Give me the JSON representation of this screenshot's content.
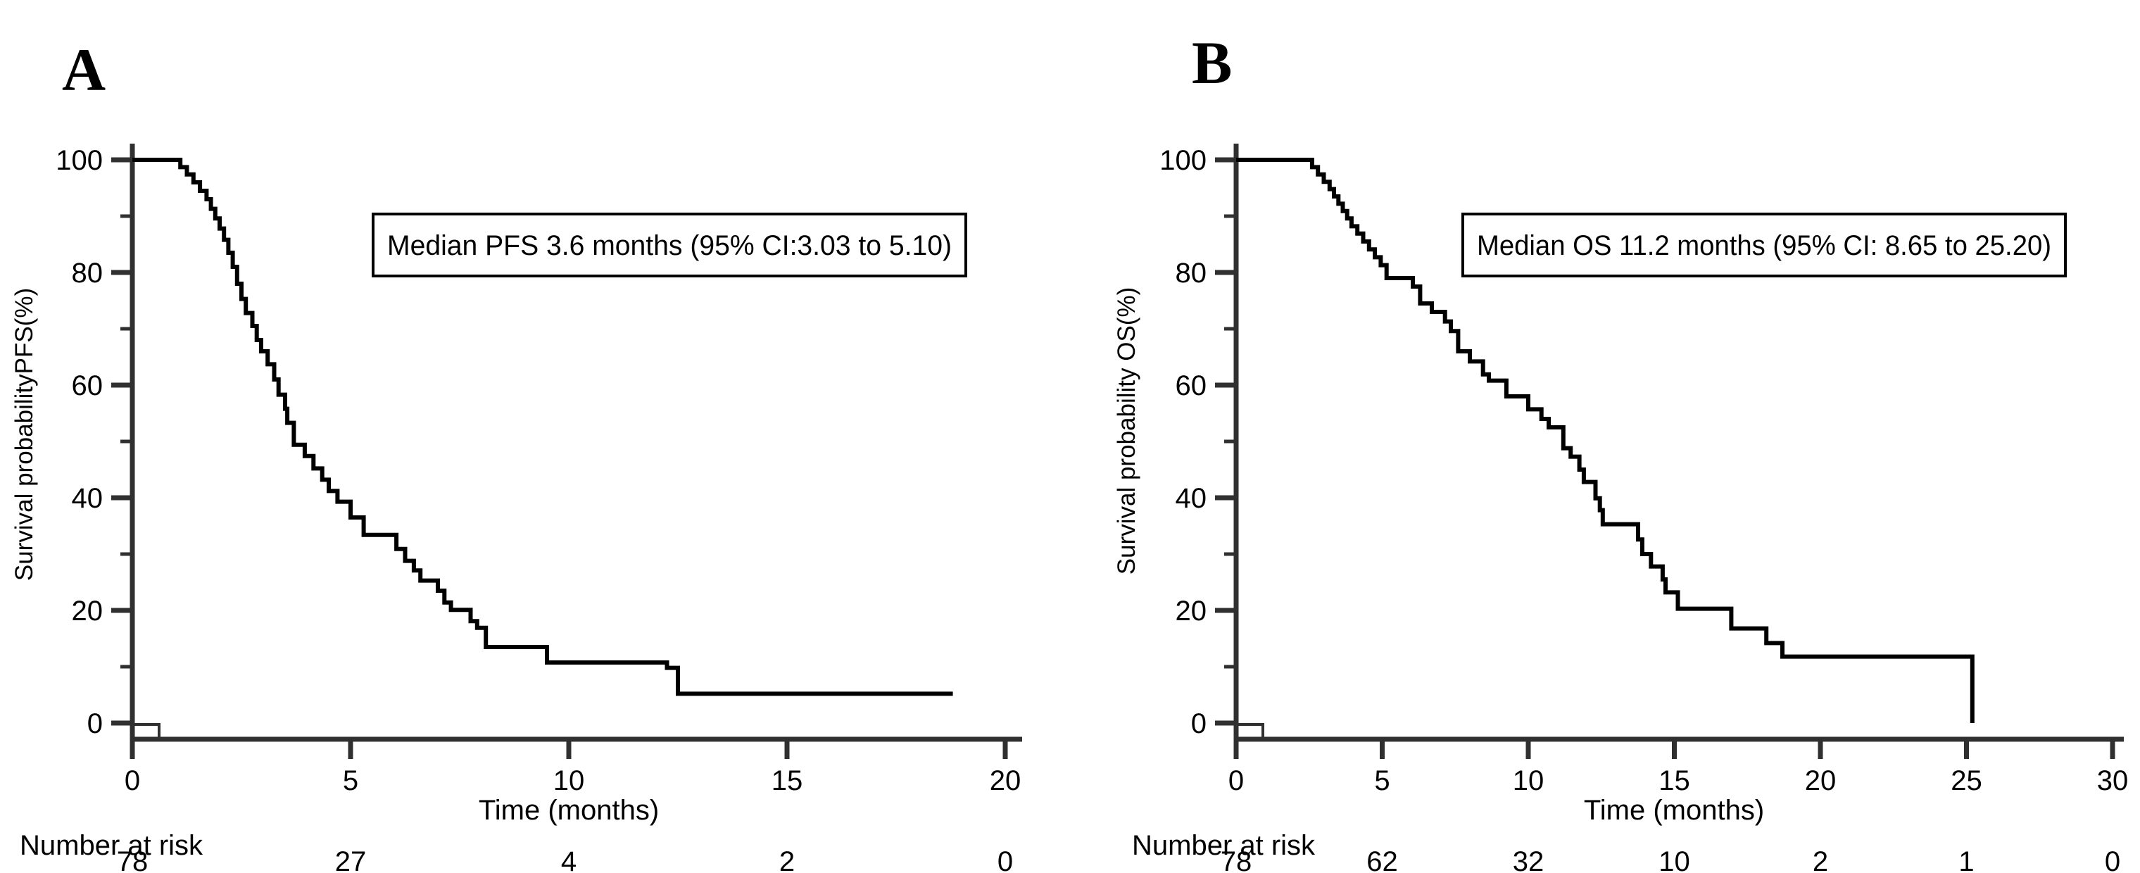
{
  "colors": {
    "curve": "#000000",
    "axis": "#303030",
    "background": "#ffffff",
    "annotation_border": "#000000"
  },
  "chart_data": [
    {
      "type": "line",
      "subtype": "kaplan-meier-step",
      "panel_label": "A",
      "annotation": "Median PFS 3.6 months (95% CI:3.03 to 5.10)",
      "xlabel": "Time (months)",
      "ylabel": "Survival probabilityPFS(%)",
      "xlim": [
        0,
        20
      ],
      "ylim": [
        0,
        100
      ],
      "xticks": [
        0,
        5,
        10,
        15,
        20
      ],
      "yticks_major": [
        0,
        20,
        40,
        60,
        80,
        100
      ],
      "yticks_minor": [
        10,
        30,
        50,
        70,
        90
      ],
      "grid": false,
      "legend": "none",
      "series": [
        {
          "name": "PFS",
          "start": [
            0,
            100
          ],
          "steps": [
            [
              1.1,
              98.7
            ],
            [
              1.25,
              97.4
            ],
            [
              1.4,
              96.0
            ],
            [
              1.55,
              94.5
            ],
            [
              1.7,
              93.0
            ],
            [
              1.8,
              91.3
            ],
            [
              1.9,
              89.6
            ],
            [
              2.0,
              87.8
            ],
            [
              2.1,
              85.8
            ],
            [
              2.2,
              83.5
            ],
            [
              2.3,
              81.0
            ],
            [
              2.4,
              78.0
            ],
            [
              2.5,
              75.3
            ],
            [
              2.6,
              72.8
            ],
            [
              2.75,
              70.5
            ],
            [
              2.85,
              68.0
            ],
            [
              2.95,
              66.0
            ],
            [
              3.1,
              63.7
            ],
            [
              3.25,
              61.0
            ],
            [
              3.35,
              58.3
            ],
            [
              3.5,
              55.8
            ],
            [
              3.55,
              53.3
            ],
            [
              3.7,
              49.4
            ],
            [
              3.95,
              47.4
            ],
            [
              4.15,
              45.2
            ],
            [
              4.35,
              43.2
            ],
            [
              4.5,
              41.2
            ],
            [
              4.7,
              39.3
            ],
            [
              5.0,
              36.5
            ],
            [
              5.3,
              33.4
            ],
            [
              6.05,
              30.9
            ],
            [
              6.25,
              28.8
            ],
            [
              6.45,
              27.1
            ],
            [
              6.6,
              25.3
            ],
            [
              7.0,
              23.5
            ],
            [
              7.15,
              21.4
            ],
            [
              7.3,
              20.1
            ],
            [
              7.75,
              18.1
            ],
            [
              7.9,
              16.9
            ],
            [
              8.1,
              13.5
            ],
            [
              9.5,
              10.75
            ],
            [
              12.25,
              9.8
            ],
            [
              12.5,
              5.2
            ]
          ],
          "end_time": 18.8,
          "end_behavior": "censored"
        }
      ],
      "median_months": 3.6,
      "ci_95": [
        3.03,
        5.1
      ],
      "number_at_risk": {
        "label": "Number at risk",
        "times": [
          0,
          5,
          10,
          15,
          20
        ],
        "values": [
          "78",
          "27",
          "4",
          "2",
          "0"
        ]
      }
    },
    {
      "type": "line",
      "subtype": "kaplan-meier-step",
      "panel_label": "B",
      "annotation": "Median OS 11.2 months (95% CI: 8.65 to 25.20)",
      "xlabel": "Time (months)",
      "ylabel": "Survival probability OS(%)",
      "xlim": [
        0,
        30
      ],
      "ylim": [
        0,
        100
      ],
      "xticks": [
        0,
        5,
        10,
        15,
        20,
        25,
        30
      ],
      "yticks_major": [
        0,
        20,
        40,
        60,
        80,
        100
      ],
      "yticks_minor": [
        10,
        30,
        50,
        70,
        90
      ],
      "grid": false,
      "legend": "none",
      "series": [
        {
          "name": "OS",
          "start": [
            0,
            100
          ],
          "steps": [
            [
              2.6,
              98.7
            ],
            [
              2.8,
              97.4
            ],
            [
              3.0,
              96.1
            ],
            [
              3.2,
              94.8
            ],
            [
              3.35,
              93.5
            ],
            [
              3.5,
              92.2
            ],
            [
              3.65,
              90.9
            ],
            [
              3.8,
              89.6
            ],
            [
              3.95,
              88.2
            ],
            [
              4.15,
              86.9
            ],
            [
              4.35,
              85.5
            ],
            [
              4.55,
              84.1
            ],
            [
              4.75,
              82.7
            ],
            [
              4.95,
              81.3
            ],
            [
              5.15,
              79.0
            ],
            [
              6.05,
              77.5
            ],
            [
              6.3,
              74.5
            ],
            [
              6.7,
              73.0
            ],
            [
              7.15,
              71.3
            ],
            [
              7.35,
              69.6
            ],
            [
              7.6,
              66.0
            ],
            [
              8.0,
              64.2
            ],
            [
              8.45,
              61.9
            ],
            [
              8.65,
              60.8
            ],
            [
              9.25,
              58.0
            ],
            [
              10.0,
              55.7
            ],
            [
              10.45,
              54.0
            ],
            [
              10.7,
              52.5
            ],
            [
              11.2,
              48.8
            ],
            [
              11.45,
              47.3
            ],
            [
              11.75,
              45.0
            ],
            [
              11.9,
              42.8
            ],
            [
              12.3,
              39.9
            ],
            [
              12.45,
              37.8
            ],
            [
              12.55,
              35.3
            ],
            [
              13.76,
              32.6
            ],
            [
              13.9,
              30.0
            ],
            [
              14.2,
              27.8
            ],
            [
              14.6,
              25.5
            ],
            [
              14.7,
              23.2
            ],
            [
              15.12,
              20.3
            ],
            [
              16.95,
              16.8
            ],
            [
              18.15,
              14.2
            ],
            [
              18.7,
              11.8
            ],
            [
              25.2,
              0
            ]
          ],
          "end_time": 25.2,
          "end_behavior": "drops_to_zero"
        }
      ],
      "median_months": 11.2,
      "ci_95": [
        8.65,
        25.2
      ],
      "number_at_risk": {
        "label": "Number at risk",
        "times": [
          0,
          5,
          10,
          15,
          20,
          25,
          30
        ],
        "values": [
          "78",
          "62",
          "32",
          "10",
          "2",
          "1",
          "0"
        ]
      }
    }
  ]
}
